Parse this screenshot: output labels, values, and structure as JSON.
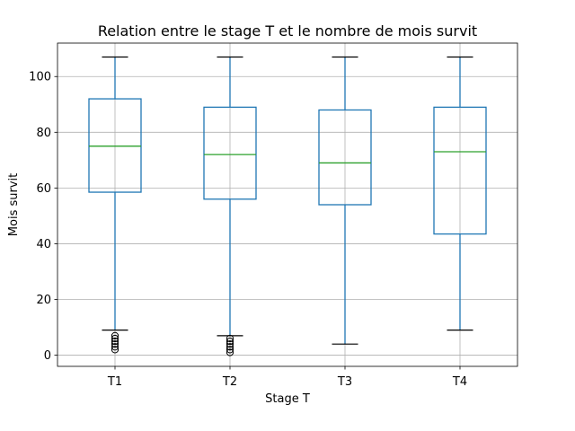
{
  "chart_data": {
    "type": "box",
    "title": "Relation entre le stage T et le nombre de mois survit",
    "xlabel": "Stage T",
    "ylabel": "Mois survit",
    "categories": [
      "T1",
      "T2",
      "T3",
      "T4"
    ],
    "ylim": [
      -4,
      112
    ],
    "yticks": [
      0,
      20,
      40,
      60,
      80,
      100
    ],
    "grid": true,
    "colors": {
      "box": "#1f77b4",
      "median": "#2ca02c",
      "whisker": "#1f77b4",
      "cap": "#000000",
      "flier": "#000000",
      "grid": "#b0b0b0"
    },
    "boxes": [
      {
        "category": "T1",
        "whislo": 9,
        "q1": 58.5,
        "median": 75,
        "q3": 92,
        "whishi": 107,
        "fliers": [
          2,
          3,
          4,
          5,
          6,
          7
        ]
      },
      {
        "category": "T2",
        "whislo": 7,
        "q1": 56,
        "median": 72,
        "q3": 89,
        "whishi": 107,
        "fliers": [
          1,
          2,
          3,
          4,
          5,
          6
        ]
      },
      {
        "category": "T3",
        "whislo": 4,
        "q1": 54,
        "median": 69,
        "q3": 88,
        "whishi": 107,
        "fliers": []
      },
      {
        "category": "T4",
        "whislo": 9,
        "q1": 43.5,
        "median": 73,
        "q3": 89,
        "whishi": 107,
        "fliers": []
      }
    ]
  }
}
